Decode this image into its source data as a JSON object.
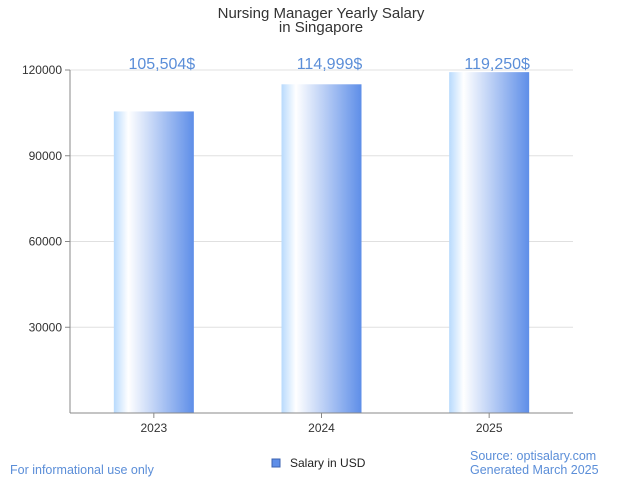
{
  "chart_data": {
    "type": "bar",
    "title_lines": [
      "Nursing Manager Yearly Salary",
      "in Singapore"
    ],
    "categories": [
      "2023",
      "2024",
      "2025"
    ],
    "series": [
      {
        "name": "Salary in USD",
        "values": [
          105504,
          114999,
          119250
        ],
        "labels": [
          "105,504$",
          "114,999$",
          "119,250$"
        ]
      }
    ],
    "ylim": [
      0,
      120000
    ],
    "yticks": [
      30000,
      60000,
      90000,
      120000
    ],
    "ytick_labels": [
      "30000",
      "60000",
      "90000",
      "120000"
    ],
    "grid": true,
    "legend_position": "bottom-center",
    "xlabel": "",
    "ylabel": ""
  },
  "colors": {
    "bar_light": "#ffffff",
    "bar_mid": "#b8dafd",
    "bar_dark": "#5e8ee8",
    "data_label": "#5b8ed8",
    "footer_text": "#5b8ed8",
    "gridline": "#e0e0e0",
    "axis": "#888888"
  },
  "footer": {
    "disclaimer": "For informational use only",
    "source": "Source: optisalary.com",
    "generated": "Generated March 2025"
  }
}
